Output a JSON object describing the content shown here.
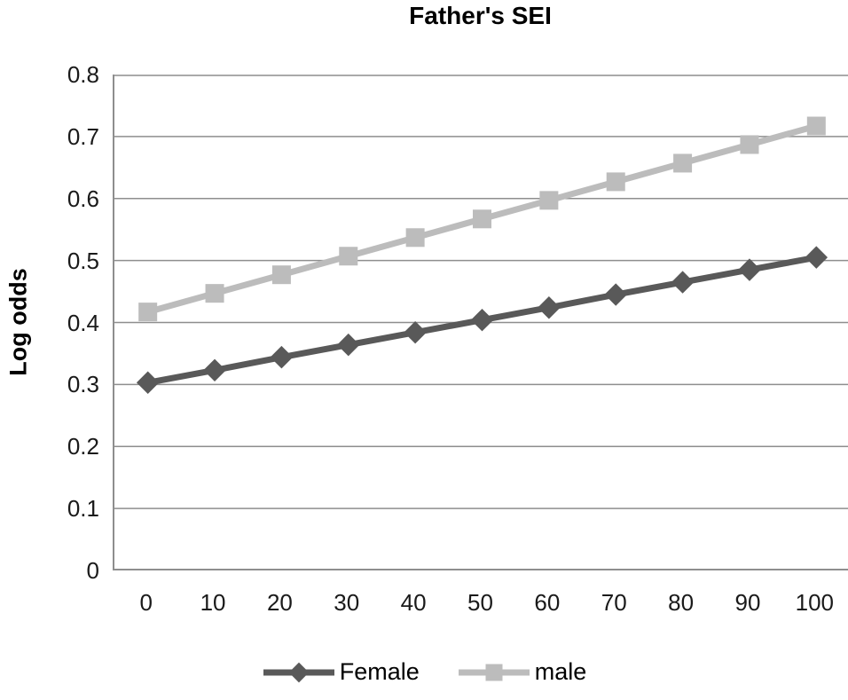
{
  "title": "Father's SEI",
  "y_axis_title": "Log odds",
  "chart_data": {
    "type": "line",
    "x": [
      0,
      10,
      20,
      30,
      40,
      50,
      60,
      70,
      80,
      90,
      100
    ],
    "series": [
      {
        "name": "Female",
        "marker": "diamond",
        "color": "#595959",
        "values": [
          0.303,
          0.323,
          0.344,
          0.364,
          0.384,
          0.404,
          0.424,
          0.445,
          0.465,
          0.485,
          0.505
        ]
      },
      {
        "name": "male",
        "marker": "square",
        "color": "#bcbcbc",
        "values": [
          0.417,
          0.447,
          0.477,
          0.507,
          0.537,
          0.567,
          0.597,
          0.627,
          0.657,
          0.687,
          0.717
        ]
      }
    ],
    "title": "Father's SEI",
    "xlabel": "",
    "ylabel": "Log odds",
    "ylim": [
      0,
      0.8
    ],
    "ytick_step": 0.1,
    "grid": "horizontal-major",
    "legend_position": "bottom"
  },
  "colors": {
    "grid": "#8e8e8e",
    "axis": "#8e8e8e",
    "tick_text": "#1a1a1a",
    "title_text": "#000000"
  }
}
